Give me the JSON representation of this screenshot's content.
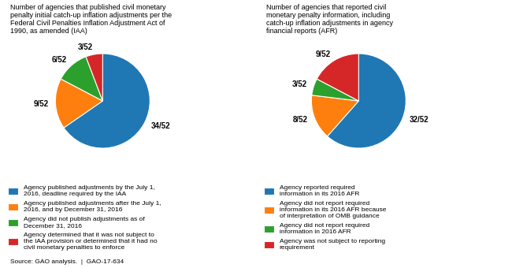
{
  "chart_data": [
    {
      "type": "pie",
      "title": "Number of agencies that published civil monetary\npenalty initial catch-up inflation adjustments per the\nFederal Civil Penalties Inflation Adjustment Act of\n1990, as amended (IAA)",
      "categories": [
        "Agency published adjustments by the July 1,\n2016, deadline required by the IAA",
        "Agency published adjustments after the July 1,\n2016, and by December 31, 2016",
        "Agency did not publish adjustments as of\nDecember 31, 2016",
        "Agency determined that it was not subject to\nthe IAA provision or determined that it had no\ncivil monetary penalties to enforce"
      ],
      "values": [
        34,
        9,
        6,
        3
      ],
      "value_labels": [
        "34/52",
        "9/52",
        "6/52",
        "3/52"
      ],
      "data_labels": true,
      "legend": "lower left"
    },
    {
      "type": "pie",
      "title": "Number of agencies that reported civil\nmonetary penalty information, including\ncatch-up inflation adjustments in agency\nfinancial reports (AFR)",
      "categories": [
        "Agency reported required\ninformation in its 2016 AFR",
        "Agency did not report required\ninformation in its 2016 AFR because\nof interpretation of OMB guidance",
        "Agency did not report required\ninformation in 2016 AFR",
        "Agency was not subject to reporting\nrequirement"
      ],
      "values": [
        32,
        8,
        3,
        9
      ],
      "value_labels": [
        "32/52",
        "8/52",
        "3/52",
        "9/52"
      ],
      "data_labels": true,
      "legend": "lower left"
    }
  ],
  "annotations": [
    "Source: GAO analysis.  |  GAO-17-634"
  ]
}
